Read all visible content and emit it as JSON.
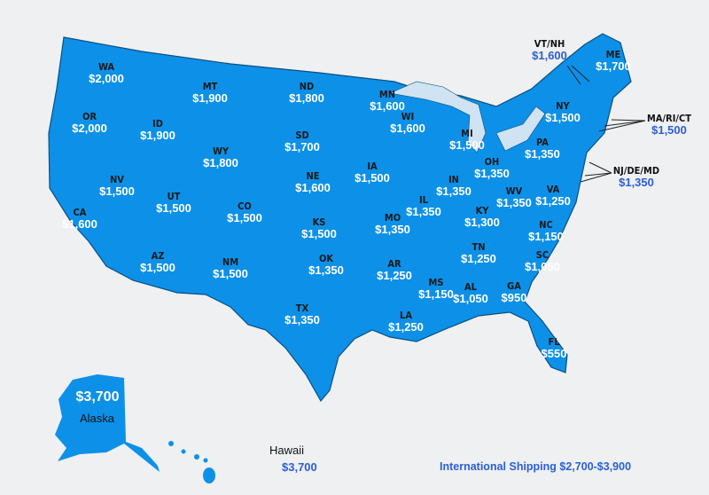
{
  "colors": {
    "land": "#0d90e8",
    "border": "#0a4f80",
    "lakes": "#cfe3f2",
    "background": "#eef0f2",
    "callout_price": "#2b5ed6"
  },
  "states": [
    {
      "abbr": "WA",
      "price": "$2,000"
    },
    {
      "abbr": "OR",
      "price": "$2,000"
    },
    {
      "abbr": "CA",
      "price": "$1,600"
    },
    {
      "abbr": "ID",
      "price": "$1,900"
    },
    {
      "abbr": "NV",
      "price": "$1,500"
    },
    {
      "abbr": "MT",
      "price": "$1,900"
    },
    {
      "abbr": "WY",
      "price": "$1,800"
    },
    {
      "abbr": "UT",
      "price": "$1,500"
    },
    {
      "abbr": "AZ",
      "price": "$1,500"
    },
    {
      "abbr": "CO",
      "price": "$1,500"
    },
    {
      "abbr": "NM",
      "price": "$1,500"
    },
    {
      "abbr": "ND",
      "price": "$1,800"
    },
    {
      "abbr": "SD",
      "price": "$1,700"
    },
    {
      "abbr": "NE",
      "price": "$1,600"
    },
    {
      "abbr": "KS",
      "price": "$1,500"
    },
    {
      "abbr": "OK",
      "price": "$1,350"
    },
    {
      "abbr": "TX",
      "price": "$1,350"
    },
    {
      "abbr": "MN",
      "price": "$1,600"
    },
    {
      "abbr": "IA",
      "price": "$1,500"
    },
    {
      "abbr": "MO",
      "price": "$1,350"
    },
    {
      "abbr": "AR",
      "price": "$1,250"
    },
    {
      "abbr": "LA",
      "price": "$1,250"
    },
    {
      "abbr": "WI",
      "price": "$1,600"
    },
    {
      "abbr": "IL",
      "price": "$1,350"
    },
    {
      "abbr": "MI",
      "price": "$1,500"
    },
    {
      "abbr": "IN",
      "price": "$1,350"
    },
    {
      "abbr": "OH",
      "price": "$1,350"
    },
    {
      "abbr": "KY",
      "price": "$1,300"
    },
    {
      "abbr": "TN",
      "price": "$1,250"
    },
    {
      "abbr": "MS",
      "price": "$1,150"
    },
    {
      "abbr": "AL",
      "price": "$1,050"
    },
    {
      "abbr": "GA",
      "price": "$950"
    },
    {
      "abbr": "FL",
      "price": "$550"
    },
    {
      "abbr": "SC",
      "price": "$1,050"
    },
    {
      "abbr": "NC",
      "price": "$1,150"
    },
    {
      "abbr": "VA",
      "price": "$1,250"
    },
    {
      "abbr": "WV",
      "price": "$1,350"
    },
    {
      "abbr": "PA",
      "price": "$1,350"
    },
    {
      "abbr": "NY",
      "price": "$1,500"
    },
    {
      "abbr": "ME",
      "price": "$1,700"
    }
  ],
  "callouts": [
    {
      "abbr": "VT/NH",
      "price": "$1,600"
    },
    {
      "abbr": "MA/RI/CT",
      "price": "$1,500"
    },
    {
      "abbr": "NJ/DE/MD",
      "price": "$1,350"
    }
  ],
  "alaska": {
    "name": "Alaska",
    "price": "$3,700"
  },
  "hawaii": {
    "name": "Hawaii",
    "price": "$3,700"
  },
  "international": "International Shipping $2,700-$3,900"
}
